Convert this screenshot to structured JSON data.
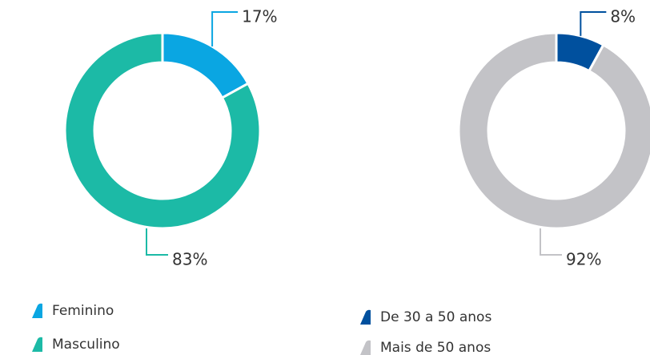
{
  "chart_data": [
    {
      "type": "pie",
      "categories": [
        "Feminino",
        "Masculino"
      ],
      "values": [
        17,
        83
      ],
      "value_labels": [
        "17%",
        "83%"
      ],
      "colors": [
        "#0aa6e2",
        "#1cbaa6"
      ]
    },
    {
      "type": "pie",
      "categories": [
        "De 30 a 50 anos",
        "Mais de 50 anos"
      ],
      "values": [
        8,
        92
      ],
      "value_labels": [
        "8%",
        "92%"
      ],
      "colors": [
        "#00509e",
        "#c3c3c7"
      ]
    }
  ]
}
